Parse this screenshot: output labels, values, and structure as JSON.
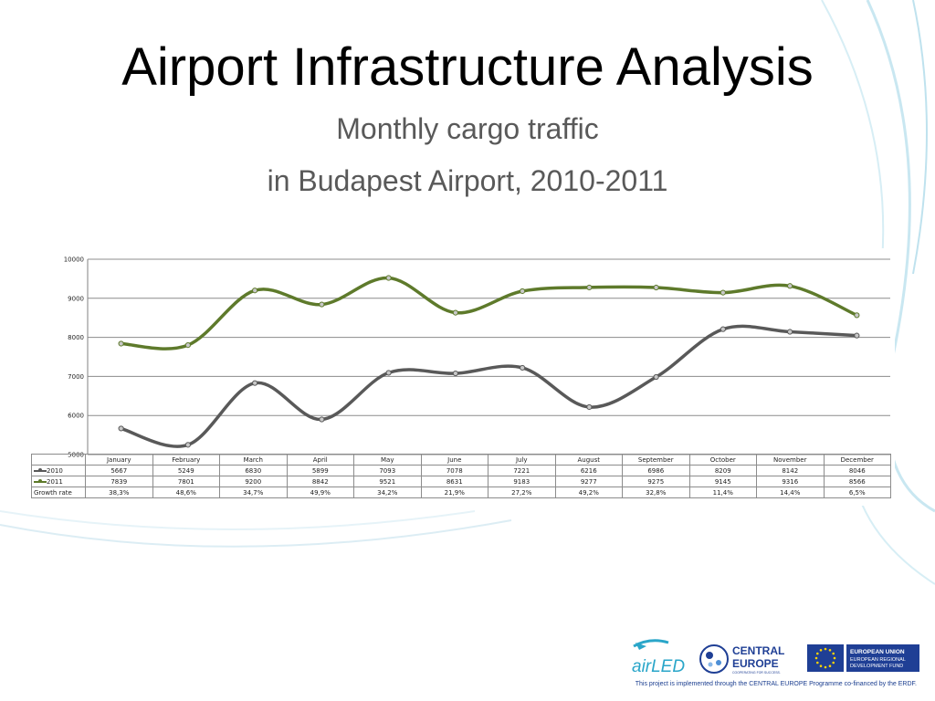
{
  "slide": {
    "title": "Airport Infrastructure Analysis",
    "subtitle_line1": "Monthly cargo traffic",
    "subtitle_line2": "in Budapest Airport, 2010-2011",
    "footer_note": "This project is implemented through the CENTRAL EUROPE Programme co-financed by the ERDF."
  },
  "logos": {
    "airled": "airLED",
    "central_europe_line1": "CENTRAL",
    "central_europe_line2": "EUROPE",
    "central_europe_tagline": "COOPERATING FOR SUCCESS.",
    "eu_line1": "EUROPEAN UNION",
    "eu_line2": "EUROPEAN REGIONAL",
    "eu_line3": "DEVELOPMENT FUND"
  },
  "colors": {
    "series_2010": "#595959",
    "series_2011": "#5e7a2b",
    "accent_teal": "#2aa6c9",
    "eu_blue": "#1f3f95",
    "eu_star": "#ffd400"
  },
  "chart_data": {
    "type": "line",
    "categories": [
      "January",
      "February",
      "March",
      "April",
      "May",
      "June",
      "July",
      "August",
      "September",
      "October",
      "November",
      "December"
    ],
    "series": [
      {
        "name": "2010",
        "values": [
          5667,
          5249,
          6830,
          5899,
          7093,
          7078,
          7221,
          6216,
          6986,
          8209,
          8142,
          8046
        ]
      },
      {
        "name": "2011",
        "values": [
          7839,
          7801,
          9200,
          8842,
          9521,
          8631,
          9183,
          9277,
          9275,
          9145,
          9316,
          8566
        ]
      }
    ],
    "growth_label": "Growth rate",
    "growth_rate": [
      "38,3%",
      "48,6%",
      "34,7%",
      "49,9%",
      "34,2%",
      "21,9%",
      "27,2%",
      "49,2%",
      "32,8%",
      "11,4%",
      "14,4%",
      "6,5%"
    ],
    "ylim": [
      5000,
      10000
    ],
    "yticks": [
      "5000",
      "6000",
      "7000",
      "8000",
      "9000",
      "10000"
    ],
    "grid": true
  }
}
